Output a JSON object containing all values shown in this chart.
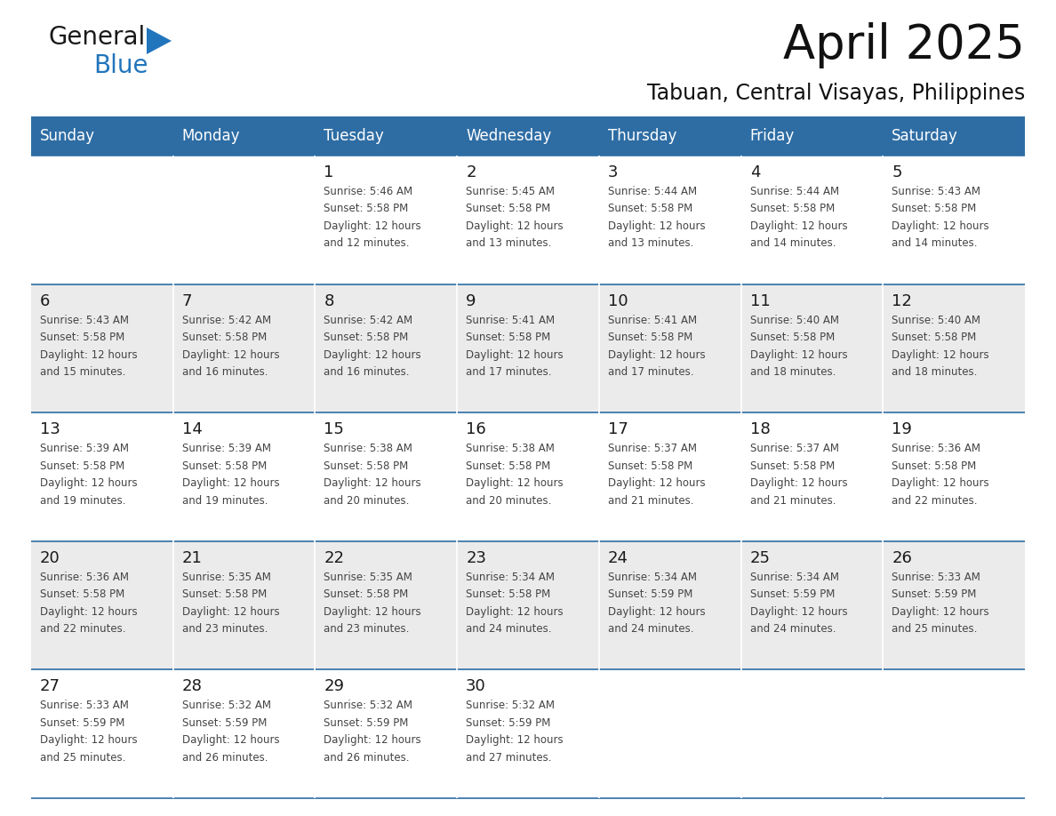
{
  "title": "April 2025",
  "subtitle": "Tabuan, Central Visayas, Philippines",
  "header_bg": "#2E6DA4",
  "header_text_color": "#FFFFFF",
  "row_bg_odd": "#FFFFFF",
  "row_bg_even": "#EBEBEB",
  "day_number_color": "#1a1a1a",
  "cell_text_color": "#444444",
  "border_color": "#2E6DA4",
  "days_of_week": [
    "Sunday",
    "Monday",
    "Tuesday",
    "Wednesday",
    "Thursday",
    "Friday",
    "Saturday"
  ],
  "weeks": [
    [
      {
        "day": "",
        "sunrise": "",
        "sunset": "",
        "daylight": ""
      },
      {
        "day": "",
        "sunrise": "",
        "sunset": "",
        "daylight": ""
      },
      {
        "day": "1",
        "sunrise": "5:46 AM",
        "sunset": "5:58 PM",
        "daylight": "12 hours and 12 minutes."
      },
      {
        "day": "2",
        "sunrise": "5:45 AM",
        "sunset": "5:58 PM",
        "daylight": "12 hours and 13 minutes."
      },
      {
        "day": "3",
        "sunrise": "5:44 AM",
        "sunset": "5:58 PM",
        "daylight": "12 hours and 13 minutes."
      },
      {
        "day": "4",
        "sunrise": "5:44 AM",
        "sunset": "5:58 PM",
        "daylight": "12 hours and 14 minutes."
      },
      {
        "day": "5",
        "sunrise": "5:43 AM",
        "sunset": "5:58 PM",
        "daylight": "12 hours and 14 minutes."
      }
    ],
    [
      {
        "day": "6",
        "sunrise": "5:43 AM",
        "sunset": "5:58 PM",
        "daylight": "12 hours and 15 minutes."
      },
      {
        "day": "7",
        "sunrise": "5:42 AM",
        "sunset": "5:58 PM",
        "daylight": "12 hours and 16 minutes."
      },
      {
        "day": "8",
        "sunrise": "5:42 AM",
        "sunset": "5:58 PM",
        "daylight": "12 hours and 16 minutes."
      },
      {
        "day": "9",
        "sunrise": "5:41 AM",
        "sunset": "5:58 PM",
        "daylight": "12 hours and 17 minutes."
      },
      {
        "day": "10",
        "sunrise": "5:41 AM",
        "sunset": "5:58 PM",
        "daylight": "12 hours and 17 minutes."
      },
      {
        "day": "11",
        "sunrise": "5:40 AM",
        "sunset": "5:58 PM",
        "daylight": "12 hours and 18 minutes."
      },
      {
        "day": "12",
        "sunrise": "5:40 AM",
        "sunset": "5:58 PM",
        "daylight": "12 hours and 18 minutes."
      }
    ],
    [
      {
        "day": "13",
        "sunrise": "5:39 AM",
        "sunset": "5:58 PM",
        "daylight": "12 hours and 19 minutes."
      },
      {
        "day": "14",
        "sunrise": "5:39 AM",
        "sunset": "5:58 PM",
        "daylight": "12 hours and 19 minutes."
      },
      {
        "day": "15",
        "sunrise": "5:38 AM",
        "sunset": "5:58 PM",
        "daylight": "12 hours and 20 minutes."
      },
      {
        "day": "16",
        "sunrise": "5:38 AM",
        "sunset": "5:58 PM",
        "daylight": "12 hours and 20 minutes."
      },
      {
        "day": "17",
        "sunrise": "5:37 AM",
        "sunset": "5:58 PM",
        "daylight": "12 hours and 21 minutes."
      },
      {
        "day": "18",
        "sunrise": "5:37 AM",
        "sunset": "5:58 PM",
        "daylight": "12 hours and 21 minutes."
      },
      {
        "day": "19",
        "sunrise": "5:36 AM",
        "sunset": "5:58 PM",
        "daylight": "12 hours and 22 minutes."
      }
    ],
    [
      {
        "day": "20",
        "sunrise": "5:36 AM",
        "sunset": "5:58 PM",
        "daylight": "12 hours and 22 minutes."
      },
      {
        "day": "21",
        "sunrise": "5:35 AM",
        "sunset": "5:58 PM",
        "daylight": "12 hours and 23 minutes."
      },
      {
        "day": "22",
        "sunrise": "5:35 AM",
        "sunset": "5:58 PM",
        "daylight": "12 hours and 23 minutes."
      },
      {
        "day": "23",
        "sunrise": "5:34 AM",
        "sunset": "5:58 PM",
        "daylight": "12 hours and 24 minutes."
      },
      {
        "day": "24",
        "sunrise": "5:34 AM",
        "sunset": "5:59 PM",
        "daylight": "12 hours and 24 minutes."
      },
      {
        "day": "25",
        "sunrise": "5:34 AM",
        "sunset": "5:59 PM",
        "daylight": "12 hours and 24 minutes."
      },
      {
        "day": "26",
        "sunrise": "5:33 AM",
        "sunset": "5:59 PM",
        "daylight": "12 hours and 25 minutes."
      }
    ],
    [
      {
        "day": "27",
        "sunrise": "5:33 AM",
        "sunset": "5:59 PM",
        "daylight": "12 hours and 25 minutes."
      },
      {
        "day": "28",
        "sunrise": "5:32 AM",
        "sunset": "5:59 PM",
        "daylight": "12 hours and 26 minutes."
      },
      {
        "day": "29",
        "sunrise": "5:32 AM",
        "sunset": "5:59 PM",
        "daylight": "12 hours and 26 minutes."
      },
      {
        "day": "30",
        "sunrise": "5:32 AM",
        "sunset": "5:59 PM",
        "daylight": "12 hours and 27 minutes."
      },
      {
        "day": "",
        "sunrise": "",
        "sunset": "",
        "daylight": ""
      },
      {
        "day": "",
        "sunrise": "",
        "sunset": "",
        "daylight": ""
      },
      {
        "day": "",
        "sunrise": "",
        "sunset": "",
        "daylight": ""
      }
    ]
  ],
  "logo_general_color": "#1a1a1a",
  "logo_blue_color": "#2175BC",
  "logo_triangle_color": "#2175BC",
  "title_fontsize": 38,
  "subtitle_fontsize": 17,
  "header_fontsize": 12,
  "day_num_fontsize": 13,
  "cell_fontsize": 8.5
}
